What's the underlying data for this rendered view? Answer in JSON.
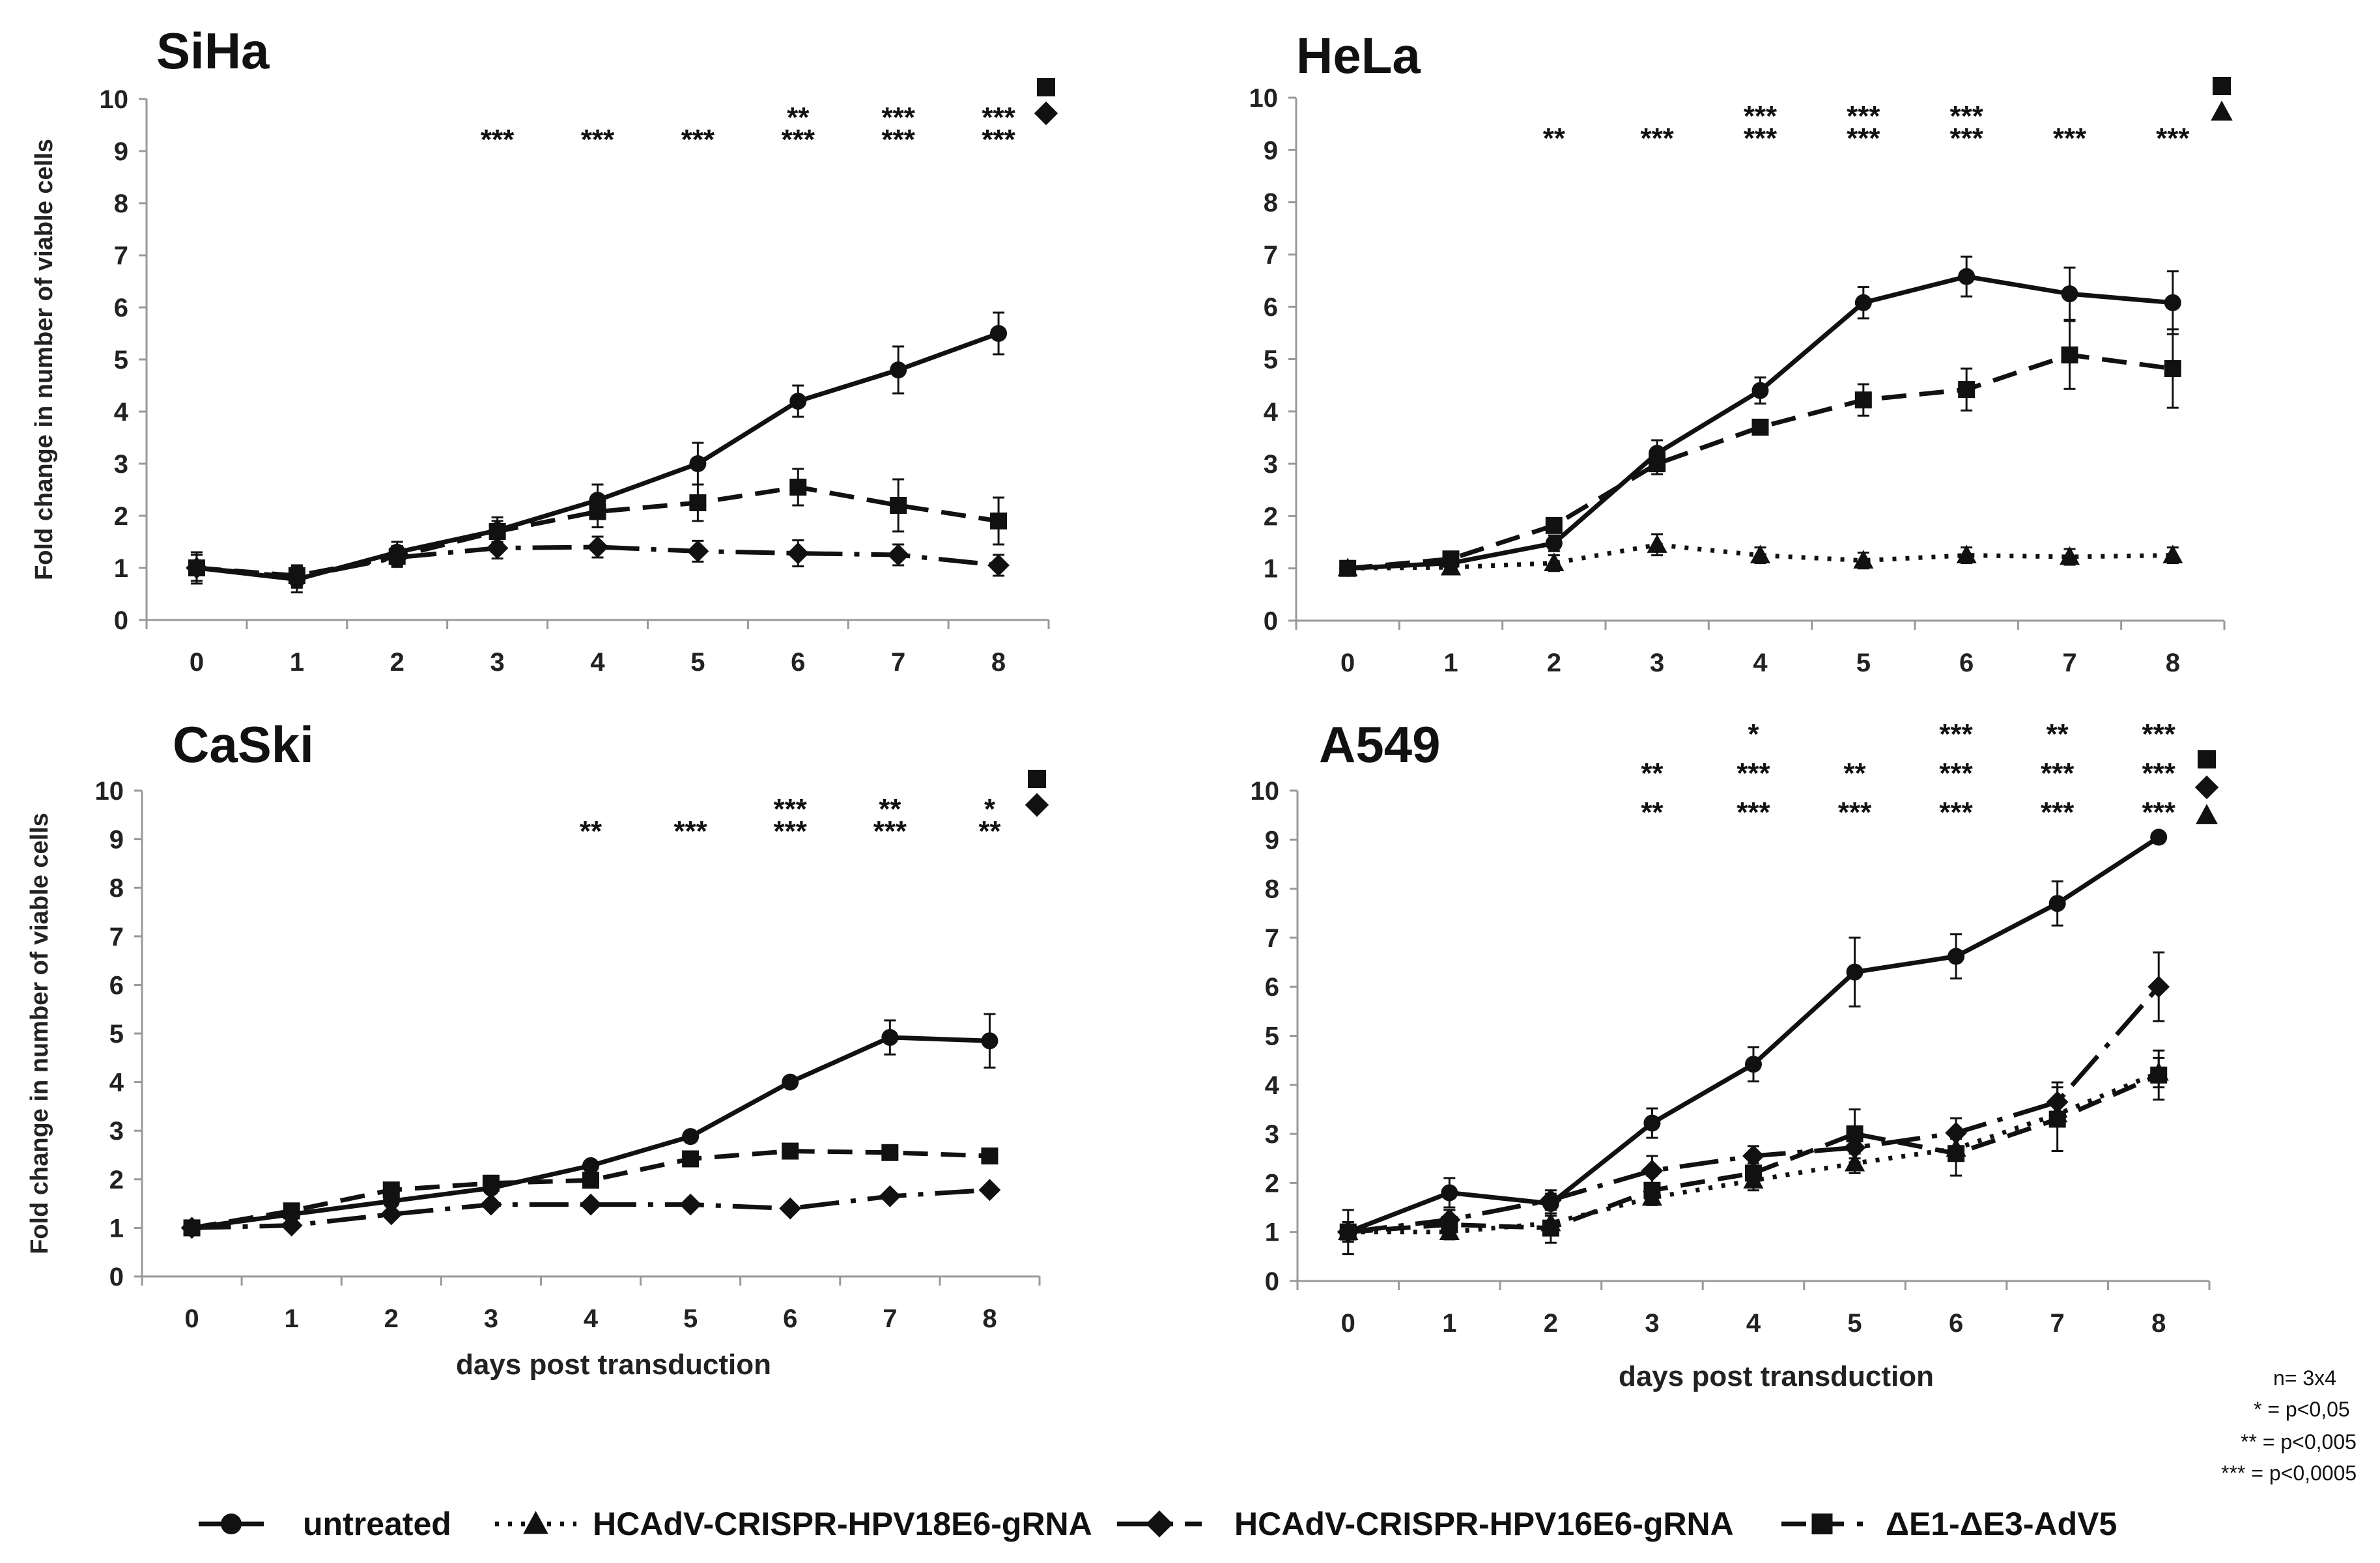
{
  "chart_data": [
    {
      "type": "line",
      "title": "SiHa",
      "ylabel": "Fold change in number of viable cells",
      "xlabel": "",
      "x": [
        0,
        1,
        2,
        3,
        4,
        5,
        6,
        7,
        8
      ],
      "ylim": [
        0,
        10
      ],
      "series": [
        {
          "name": "untreated",
          "key": "untreated",
          "values": [
            1.0,
            0.78,
            1.3,
            1.72,
            2.3,
            3.0,
            4.2,
            4.8,
            5.5
          ],
          "errors": [
            0.3,
            0.25,
            0.2,
            0.25,
            0.3,
            0.4,
            0.3,
            0.45,
            0.4
          ]
        },
        {
          "name": "HCAdV-CRISPR-HPV16E6-gRNA",
          "key": "hpv16",
          "values": [
            1.0,
            0.82,
            1.2,
            1.38,
            1.4,
            1.32,
            1.28,
            1.25,
            1.05
          ],
          "errors": [
            0.25,
            0.2,
            0.15,
            0.2,
            0.2,
            0.2,
            0.25,
            0.2,
            0.2
          ]
        },
        {
          "name": "ΔE1-ΔE3-AdV5",
          "key": "adv5",
          "values": [
            1.0,
            0.85,
            1.22,
            1.7,
            2.08,
            2.25,
            2.55,
            2.2,
            1.9
          ],
          "errors": [
            0.25,
            0.2,
            0.2,
            0.2,
            0.3,
            0.35,
            0.35,
            0.5,
            0.45
          ]
        }
      ],
      "significance": [
        {
          "x": 3,
          "rows": [
            "***"
          ]
        },
        {
          "x": 4,
          "rows": [
            "***"
          ]
        },
        {
          "x": 5,
          "rows": [
            "***"
          ]
        },
        {
          "x": 6,
          "rows": [
            "**",
            "***"
          ]
        },
        {
          "x": 7,
          "rows": [
            "***",
            "***"
          ]
        },
        {
          "x": 8,
          "rows": [
            "***",
            "***"
          ]
        }
      ],
      "markers": [
        "square",
        "diamond"
      ]
    },
    {
      "type": "line",
      "title": "HeLa",
      "ylabel": "",
      "xlabel": "",
      "x": [
        0,
        1,
        2,
        3,
        4,
        5,
        6,
        7,
        8
      ],
      "ylim": [
        0,
        10
      ],
      "series": [
        {
          "name": "untreated",
          "key": "untreated",
          "values": [
            1.0,
            1.1,
            1.48,
            3.2,
            4.4,
            6.08,
            6.58,
            6.25,
            6.08
          ],
          "errors": [
            0.1,
            0.1,
            0.15,
            0.25,
            0.25,
            0.3,
            0.38,
            0.5,
            0.6
          ]
        },
        {
          "name": "HCAdV-CRISPR-HPV18E6-gRNA",
          "key": "hpv18",
          "values": [
            1.0,
            1.02,
            1.1,
            1.45,
            1.25,
            1.15,
            1.25,
            1.22,
            1.25
          ],
          "errors": [
            0.1,
            0.1,
            0.15,
            0.2,
            0.15,
            0.15,
            0.15,
            0.15,
            0.15
          ]
        },
        {
          "name": "ΔE1-ΔE3-AdV5",
          "key": "adv5",
          "values": [
            1.0,
            1.18,
            1.82,
            3.0,
            3.7,
            4.22,
            4.42,
            5.08,
            4.82
          ],
          "errors": [
            0.1,
            0.1,
            0.1,
            0.2,
            0.1,
            0.3,
            0.4,
            0.65,
            0.75
          ]
        }
      ],
      "significance": [
        {
          "x": 2,
          "rows": [
            "**"
          ]
        },
        {
          "x": 3,
          "rows": [
            "***"
          ]
        },
        {
          "x": 4,
          "rows": [
            "***",
            "***"
          ]
        },
        {
          "x": 5,
          "rows": [
            "***",
            "***"
          ]
        },
        {
          "x": 6,
          "rows": [
            "***",
            "***"
          ]
        },
        {
          "x": 7,
          "rows": [
            "***"
          ]
        },
        {
          "x": 8,
          "rows": [
            "***"
          ]
        }
      ],
      "markers": [
        "square",
        "triangle"
      ]
    },
    {
      "type": "line",
      "title": "CaSki",
      "ylabel": "Fold change in number of viable cells",
      "xlabel": "days post transduction",
      "x": [
        0,
        1,
        2,
        3,
        4,
        5,
        6,
        7,
        8
      ],
      "ylim": [
        0,
        10
      ],
      "series": [
        {
          "name": "untreated",
          "key": "untreated",
          "values": [
            1.0,
            1.28,
            1.55,
            1.82,
            2.28,
            2.88,
            4.0,
            4.92,
            4.85
          ],
          "errors": [
            0.05,
            0.05,
            0.1,
            0.1,
            0.1,
            0.1,
            0.1,
            0.35,
            0.55
          ]
        },
        {
          "name": "HCAdV-CRISPR-HPV16E6-gRNA",
          "key": "hpv16",
          "values": [
            1.0,
            1.05,
            1.28,
            1.48,
            1.48,
            1.48,
            1.4,
            1.65,
            1.78
          ],
          "errors": [
            0.05,
            0.05,
            0.05,
            0.05,
            0.05,
            0.05,
            0.05,
            0.05,
            0.05
          ]
        },
        {
          "name": "ΔE1-ΔE3-AdV5",
          "key": "adv5",
          "values": [
            1.0,
            1.35,
            1.78,
            1.92,
            1.98,
            2.42,
            2.58,
            2.55,
            2.48
          ],
          "errors": [
            0.05,
            0.05,
            0.05,
            0.1,
            0.1,
            0.1,
            0.1,
            0.1,
            0.1
          ]
        }
      ],
      "significance": [
        {
          "x": 4,
          "rows": [
            "**"
          ]
        },
        {
          "x": 5,
          "rows": [
            "***"
          ]
        },
        {
          "x": 6,
          "rows": [
            "***",
            "***"
          ]
        },
        {
          "x": 7,
          "rows": [
            "**",
            "***"
          ]
        },
        {
          "x": 8,
          "rows": [
            "*",
            "**"
          ]
        }
      ],
      "markers": [
        "square",
        "diamond"
      ]
    },
    {
      "type": "line",
      "title": "A549",
      "ylabel": "",
      "xlabel": "days post transduction",
      "x": [
        0,
        1,
        2,
        3,
        4,
        5,
        6,
        7,
        8
      ],
      "ylim": [
        0,
        10
      ],
      "series": [
        {
          "name": "untreated",
          "key": "untreated",
          "values": [
            1.0,
            1.8,
            1.58,
            3.22,
            4.42,
            6.3,
            6.62,
            7.7,
            9.05
          ],
          "errors": [
            0.45,
            0.3,
            0.2,
            0.3,
            0.35,
            0.7,
            0.45,
            0.45,
            0.1
          ]
        },
        {
          "name": "HCAdV-CRISPR-HPV18E6-gRNA",
          "key": "hpv18",
          "values": [
            1.0,
            1.0,
            1.18,
            1.7,
            2.05,
            2.4,
            2.7,
            3.4,
            4.25
          ],
          "errors": [
            0.15,
            0.15,
            0.15,
            0.15,
            0.2,
            0.2,
            0.2,
            0.2,
            0.3
          ]
        },
        {
          "name": "HCAdV-CRISPR-HPV16E6-gRNA",
          "key": "hpv16",
          "values": [
            1.0,
            1.25,
            1.65,
            2.25,
            2.55,
            2.72,
            3.02,
            3.65,
            6.0
          ],
          "errors": [
            0.2,
            0.2,
            0.2,
            0.3,
            0.2,
            0.3,
            0.3,
            0.4,
            0.7
          ]
        },
        {
          "name": "ΔE1-ΔE3-AdV5",
          "key": "adv5",
          "values": [
            1.0,
            1.15,
            1.08,
            1.85,
            2.2,
            3.0,
            2.6,
            3.3,
            4.2
          ],
          "errors": [
            0.2,
            0.3,
            0.3,
            0.3,
            0.2,
            0.5,
            0.45,
            0.65,
            0.5
          ]
        }
      ],
      "significance": [
        {
          "x": 3,
          "rows": [
            "**",
            "**"
          ]
        },
        {
          "x": 4,
          "rows": [
            "*",
            "***",
            "***"
          ]
        },
        {
          "x": 5,
          "rows": [
            "**",
            "***"
          ]
        },
        {
          "x": 6,
          "rows": [
            "***",
            "***",
            "***"
          ]
        },
        {
          "x": 7,
          "rows": [
            "**",
            "***",
            "***"
          ]
        },
        {
          "x": 8,
          "rows": [
            "***",
            "***",
            "***"
          ]
        }
      ],
      "markers": [
        "square",
        "diamond",
        "triangle"
      ]
    }
  ],
  "legend": [
    {
      "key": "untreated",
      "label": "untreated"
    },
    {
      "key": "hpv18",
      "label": "HCAdV-CRISPR-HPV18E6-gRNA"
    },
    {
      "key": "hpv16",
      "label": "HCAdV-CRISPR-HPV16E6-gRNA"
    },
    {
      "key": "adv5",
      "label": "ΔE1-ΔE3-AdV5"
    }
  ],
  "notes": [
    "n= 3x4",
    "* =  p<0,05",
    "** = p<0,005",
    "*** = p<0,0005"
  ]
}
